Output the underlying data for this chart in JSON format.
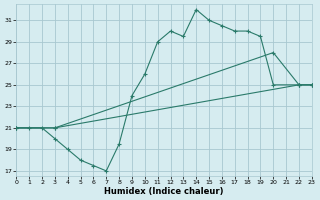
{
  "xlabel": "Humidex (Indice chaleur)",
  "xlim": [
    0,
    23
  ],
  "ylim": [
    16.5,
    32.5
  ],
  "xticks": [
    0,
    1,
    2,
    3,
    4,
    5,
    6,
    7,
    8,
    9,
    10,
    11,
    12,
    13,
    14,
    15,
    16,
    17,
    18,
    19,
    20,
    21,
    22,
    23
  ],
  "yticks": [
    17,
    19,
    21,
    23,
    25,
    27,
    29,
    31
  ],
  "bg_color": "#d6ecf0",
  "grid_color": "#a8c8d0",
  "line_color": "#2a7a6a",
  "line1_x": [
    0,
    1,
    2,
    3,
    4,
    5,
    6,
    7,
    8,
    9,
    10,
    11,
    12,
    13,
    14,
    15,
    16,
    17,
    18,
    19,
    20,
    22,
    23
  ],
  "line1_y": [
    21,
    21,
    21,
    20,
    19,
    18,
    17.5,
    17,
    19.5,
    24,
    26,
    29,
    30,
    29.5,
    32,
    31,
    30.5,
    30,
    30,
    29.5,
    25,
    25,
    25
  ],
  "line2_x": [
    0,
    3,
    20,
    22,
    23
  ],
  "line2_y": [
    21,
    21,
    28,
    25,
    25
  ],
  "line3_x": [
    0,
    3,
    22,
    23
  ],
  "line3_y": [
    21,
    21,
    25,
    25
  ],
  "figsize": [
    3.2,
    2.0
  ],
  "dpi": 100
}
